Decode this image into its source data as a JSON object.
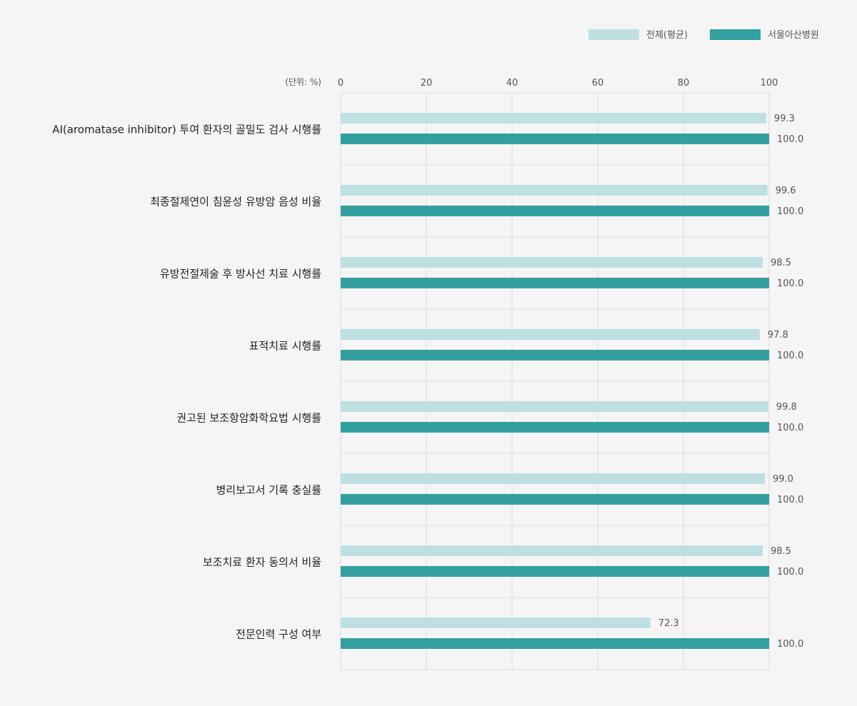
{
  "chart_data": {
    "type": "bar",
    "orientation": "horizontal",
    "unit_label": "(단위: %)",
    "xlim": [
      0,
      100
    ],
    "xticks": [
      "0",
      "20",
      "40",
      "60",
      "80",
      "100"
    ],
    "grid": true,
    "legend_position": "top-right",
    "categories": [
      "AI(aromatase inhibitor) 투여 환자의 골밀도 검사 시행률",
      "최종절제연이 침윤성 유방암 음성 비율",
      "유방전절제술 후 방사선 치료 시행률",
      "표적치료 시행률",
      "권고된 보조항암화학요법 시행률",
      "병리보고서 기록 충실률",
      "보조치료 환자 동의서 비율",
      "전문인력 구성 여부"
    ],
    "series": [
      {
        "name": "전체(평균)",
        "color": "#bfe0e2",
        "values": [
          99.3,
          99.6,
          98.5,
          97.8,
          99.8,
          99.0,
          98.5,
          72.3
        ],
        "labels": [
          "99.3",
          "99.6",
          "98.5",
          "97.8",
          "99.8",
          "99.0",
          "98.5",
          "72.3"
        ]
      },
      {
        "name": "서울아산병원",
        "color": "#339fa1",
        "values": [
          100.0,
          100.0,
          100.0,
          100.0,
          100.0,
          100.0,
          100.0,
          100.0
        ],
        "labels": [
          "100.0",
          "100.0",
          "100.0",
          "100.0",
          "100.0",
          "100.0",
          "100.0",
          "100.0"
        ]
      }
    ]
  }
}
